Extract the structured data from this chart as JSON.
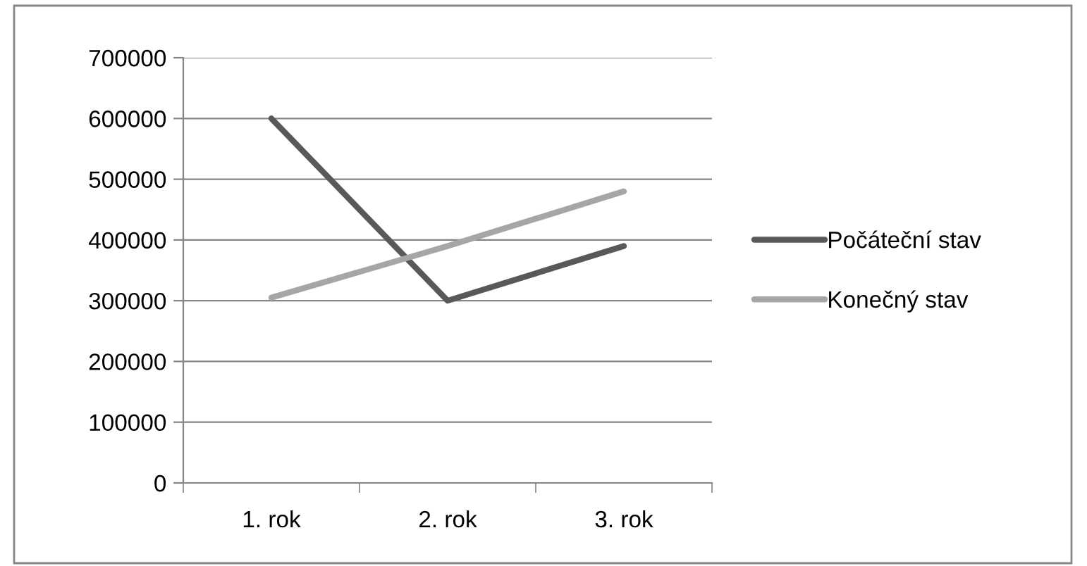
{
  "chart_data": {
    "type": "line",
    "categories": [
      "1. rok",
      "2. rok",
      "3. rok"
    ],
    "series": [
      {
        "name": "Počáteční stav",
        "color": "#595959",
        "values": [
          600000,
          300000,
          390000
        ]
      },
      {
        "name": "Konečný stav",
        "color": "#a6a6a6",
        "values": [
          305000,
          390000,
          480000
        ]
      }
    ],
    "ylim": [
      0,
      700000
    ],
    "yticks": [
      0,
      100000,
      200000,
      300000,
      400000,
      500000,
      600000,
      700000
    ],
    "grid": "y",
    "legend": "right",
    "marker": "none",
    "line_style": "solid"
  }
}
